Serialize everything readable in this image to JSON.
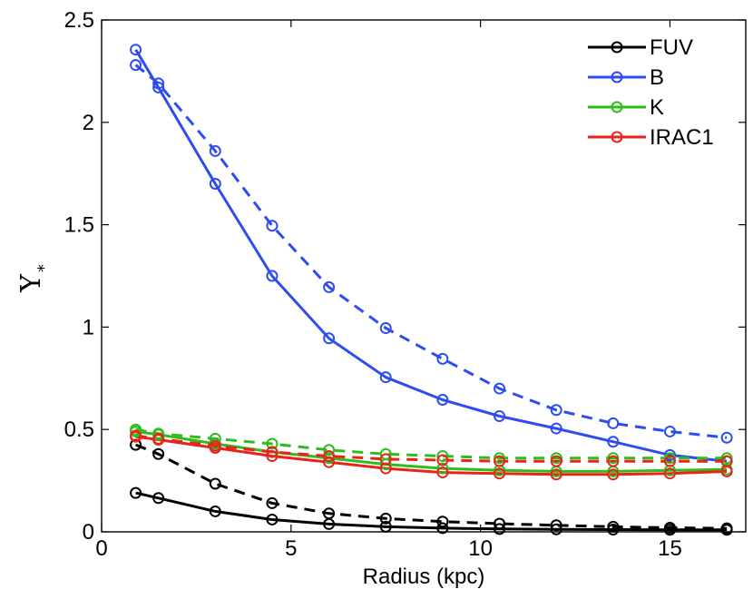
{
  "chart_data": {
    "type": "line",
    "title": "",
    "xlabel": "Radius (kpc)",
    "ylabel": "Υ",
    "ylabel_subscript": "*",
    "xlim": [
      0,
      17
    ],
    "ylim": [
      0,
      2.5
    ],
    "xticks": [
      0,
      5,
      10,
      15
    ],
    "yticks": [
      0,
      0.5,
      1,
      1.5,
      2,
      2.5
    ],
    "xtick_labels": [
      "0",
      "5",
      "10",
      "15"
    ],
    "ytick_labels": [
      "0",
      "0.5",
      "1",
      "1.5",
      "2",
      "2.5"
    ],
    "grid": false,
    "legend_position": "top-right",
    "x": [
      0.9,
      1.5,
      3,
      4.5,
      6,
      7.5,
      9,
      10.5,
      12,
      13.5,
      15,
      16.5
    ],
    "series": [
      {
        "name": "FUV",
        "color": "#000000",
        "style": "solid",
        "values": [
          0.19,
          0.165,
          0.1,
          0.06,
          0.038,
          0.025,
          0.018,
          0.014,
          0.012,
          0.011,
          0.01,
          0.01
        ]
      },
      {
        "name": "FUV",
        "color": "#000000",
        "style": "dashed",
        "values": [
          0.425,
          0.38,
          0.235,
          0.14,
          0.09,
          0.065,
          0.05,
          0.04,
          0.032,
          0.025,
          0.02,
          0.017
        ]
      },
      {
        "name": "B",
        "color": "#2d4df0",
        "style": "solid",
        "values": [
          2.355,
          2.17,
          1.7,
          1.25,
          0.945,
          0.755,
          0.645,
          0.565,
          0.505,
          0.44,
          0.375,
          0.345
        ]
      },
      {
        "name": "B",
        "color": "#2d4df0",
        "style": "dashed",
        "values": [
          2.28,
          2.19,
          1.86,
          1.495,
          1.195,
          0.995,
          0.845,
          0.7,
          0.595,
          0.53,
          0.49,
          0.46
        ]
      },
      {
        "name": "K",
        "color": "#2ebd1b",
        "style": "solid",
        "values": [
          0.49,
          0.475,
          0.43,
          0.39,
          0.36,
          0.33,
          0.31,
          0.3,
          0.295,
          0.295,
          0.3,
          0.305
        ]
      },
      {
        "name": "K",
        "color": "#2ebd1b",
        "style": "dashed",
        "values": [
          0.5,
          0.48,
          0.455,
          0.43,
          0.4,
          0.38,
          0.37,
          0.36,
          0.36,
          0.36,
          0.36,
          0.36
        ]
      },
      {
        "name": "IRAC1",
        "color": "#e8231c",
        "style": "solid",
        "values": [
          0.465,
          0.45,
          0.41,
          0.37,
          0.34,
          0.31,
          0.29,
          0.285,
          0.28,
          0.28,
          0.285,
          0.295
        ]
      },
      {
        "name": "IRAC1",
        "color": "#e8231c",
        "style": "dashed",
        "values": [
          0.47,
          0.455,
          0.42,
          0.39,
          0.37,
          0.355,
          0.35,
          0.345,
          0.345,
          0.345,
          0.345,
          0.345
        ]
      }
    ],
    "legend": [
      {
        "label": "FUV",
        "color": "#000000"
      },
      {
        "label": "B",
        "color": "#2d4df0"
      },
      {
        "label": "K",
        "color": "#2ebd1b"
      },
      {
        "label": "IRAC1",
        "color": "#e8231c"
      }
    ]
  }
}
